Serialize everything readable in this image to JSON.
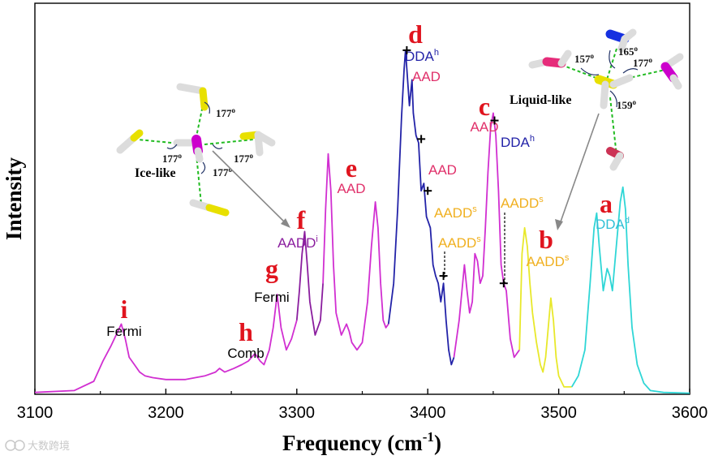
{
  "chart_data": {
    "type": "line",
    "xlabel": "Frequency (cm",
    "xlabel_sup": "-1",
    "xlabel_close": ")",
    "ylabel": "Intensity",
    "xlim": [
      3100,
      3600
    ],
    "ylim": [
      0,
      1
    ],
    "x_ticks": [
      3100,
      3200,
      3300,
      3400,
      3500,
      3600
    ],
    "x_tick_labels": [
      "3100",
      "3200",
      "3300",
      "3400",
      "3500",
      "3600"
    ],
    "grid": false,
    "series": [
      {
        "color": "#d12fd1",
        "x": [
          3100,
          3130,
          3145,
          3152,
          3158,
          3162,
          3166,
          3169,
          3172,
          3176,
          3180,
          3184,
          3190,
          3200,
          3215,
          3230,
          3238,
          3241,
          3245,
          3252,
          3258,
          3263,
          3268,
          3272,
          3275,
          3279,
          3282,
          3285,
          3288,
          3292,
          3296,
          3300
        ],
        "y": [
          0.005,
          0.01,
          0.035,
          0.09,
          0.13,
          0.16,
          0.19,
          0.15,
          0.1,
          0.08,
          0.06,
          0.05,
          0.045,
          0.04,
          0.04,
          0.05,
          0.06,
          0.07,
          0.06,
          0.07,
          0.08,
          0.09,
          0.11,
          0.09,
          0.08,
          0.12,
          0.18,
          0.27,
          0.18,
          0.12,
          0.15,
          0.2
        ]
      },
      {
        "color": "#8a1d9e",
        "x": [
          3300,
          3302,
          3304,
          3306,
          3308,
          3310,
          3314,
          3318,
          3320
        ],
        "y": [
          0.2,
          0.28,
          0.38,
          0.44,
          0.35,
          0.25,
          0.16,
          0.2,
          0.3
        ]
      },
      {
        "color": "#d12fd1",
        "x": [
          3320,
          3322,
          3324,
          3326,
          3328,
          3330,
          3334,
          3338,
          3340,
          3342,
          3346,
          3350,
          3354,
          3357,
          3360,
          3362,
          3364,
          3366,
          3368,
          3370
        ],
        "y": [
          0.3,
          0.5,
          0.65,
          0.55,
          0.35,
          0.22,
          0.16,
          0.19,
          0.17,
          0.14,
          0.12,
          0.14,
          0.25,
          0.4,
          0.52,
          0.45,
          0.3,
          0.2,
          0.18,
          0.19
        ]
      },
      {
        "color": "#2323a8",
        "x": [
          3370,
          3374,
          3377,
          3380,
          3382,
          3383,
          3384,
          3386,
          3388,
          3389,
          3391,
          3393,
          3395,
          3397,
          3399,
          3402,
          3404,
          3406,
          3408,
          3410,
          3412,
          3414,
          3416,
          3418,
          3420
        ],
        "y": [
          0.19,
          0.3,
          0.5,
          0.75,
          0.88,
          0.93,
          0.88,
          0.78,
          0.85,
          0.76,
          0.7,
          0.68,
          0.55,
          0.57,
          0.48,
          0.45,
          0.35,
          0.32,
          0.3,
          0.25,
          0.3,
          0.2,
          0.12,
          0.08,
          0.1
        ]
      },
      {
        "color": "#d12fd1",
        "x": [
          3420,
          3424,
          3428,
          3430,
          3432,
          3434,
          3436,
          3438,
          3440,
          3442,
          3444,
          3446,
          3448,
          3450,
          3452,
          3454,
          3456,
          3458,
          3460,
          3463,
          3466,
          3470
        ],
        "y": [
          0.1,
          0.2,
          0.35,
          0.28,
          0.22,
          0.25,
          0.38,
          0.36,
          0.3,
          0.32,
          0.45,
          0.6,
          0.72,
          0.76,
          0.7,
          0.55,
          0.35,
          0.3,
          0.28,
          0.15,
          0.1,
          0.12
        ]
      },
      {
        "color": "#e8e82a",
        "x": [
          3470,
          3472,
          3474,
          3476,
          3478,
          3480,
          3483,
          3486,
          3488,
          3490,
          3492,
          3494,
          3496,
          3498,
          3500,
          3504,
          3508,
          3510
        ],
        "y": [
          0.12,
          0.38,
          0.45,
          0.4,
          0.3,
          0.22,
          0.14,
          0.08,
          0.06,
          0.1,
          0.18,
          0.26,
          0.2,
          0.1,
          0.05,
          0.02,
          0.02,
          0.02
        ]
      },
      {
        "color": "#2fd6d6",
        "x": [
          3510,
          3515,
          3520,
          3524,
          3527,
          3529,
          3531,
          3534,
          3537,
          3539,
          3541,
          3544,
          3547,
          3549,
          3551,
          3553,
          3556,
          3560,
          3565,
          3570,
          3580,
          3600
        ],
        "y": [
          0.02,
          0.05,
          0.12,
          0.3,
          0.45,
          0.49,
          0.4,
          0.28,
          0.34,
          0.32,
          0.28,
          0.4,
          0.52,
          0.56,
          0.5,
          0.35,
          0.18,
          0.08,
          0.03,
          0.01,
          0.005,
          0.003
        ]
      }
    ],
    "peaks": [
      {
        "id": "i",
        "letter": "i",
        "note": "Fermi",
        "note_color": "#000000"
      },
      {
        "id": "h",
        "letter": "h",
        "note": "Comb",
        "note_color": "#000000"
      },
      {
        "id": "g",
        "letter": "g",
        "note": "Fermi",
        "note_color": "#000000"
      },
      {
        "id": "f",
        "letter": "f",
        "note": "AADD",
        "sup": "i",
        "note_color": "#8a1d9e"
      },
      {
        "id": "e",
        "letter": "e",
        "note": "AAD",
        "note_color": "#e0306a"
      },
      {
        "id": "d",
        "letter": "d",
        "note": "DDA",
        "sup": "h",
        "note_color": "#2323a8"
      },
      {
        "id": "c",
        "letter": "c",
        "note": "AAD",
        "note_color": "#e0306a"
      },
      {
        "id": "b",
        "letter": "b",
        "note": "AADD",
        "sup": "s",
        "note_color": "#f0b020"
      },
      {
        "id": "a",
        "letter": "a",
        "note": "DDA",
        "sup": "d",
        "note_color": "#2fc0d6"
      }
    ],
    "markers": [
      {
        "id": "m1",
        "x": 3384,
        "y": 0.93,
        "label": "AAD",
        "color": "#e0306a"
      },
      {
        "id": "m2",
        "x": 3395,
        "y": 0.69,
        "label": "AAD",
        "color": "#e0306a"
      },
      {
        "id": "m3",
        "x": 3400,
        "y": 0.55,
        "label": "AADD",
        "sup": "s",
        "color": "#f0b020"
      },
      {
        "id": "m4",
        "x": 3412,
        "y": 0.32,
        "label": "AADD",
        "sup": "s",
        "color": "#f0b020"
      },
      {
        "id": "m5",
        "x": 3451,
        "y": 0.74,
        "label": "DDA",
        "sup": "h",
        "color": "#2323a8"
      },
      {
        "id": "m6",
        "x": 3458,
        "y": 0.3,
        "label": "AADD",
        "sup": "s",
        "color": "#f0b020"
      }
    ]
  },
  "insets": {
    "ice": {
      "label": "Ice-like",
      "angles": [
        "177",
        "177",
        "177",
        "177"
      ],
      "angle_unit": "o"
    },
    "liquid": {
      "label": "Liquid-like",
      "angles": [
        "157",
        "165",
        "177",
        "159"
      ],
      "angle_unit": "o"
    }
  },
  "watermark": "大数跨境"
}
